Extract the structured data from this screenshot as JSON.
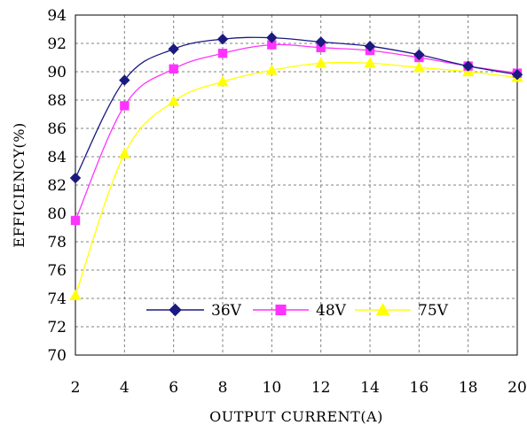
{
  "chart_data": {
    "type": "line",
    "xlabel": "OUTPUT CURRENT(A)",
    "ylabel": "EFFICIENCY(%)",
    "x": [
      2,
      4,
      6,
      8,
      10,
      12,
      14,
      16,
      18,
      20
    ],
    "xlim": [
      2,
      20
    ],
    "ylim": [
      70,
      94
    ],
    "x_ticks": [
      2,
      4,
      6,
      8,
      10,
      12,
      14,
      16,
      18,
      20
    ],
    "y_ticks": [
      70,
      72,
      74,
      76,
      78,
      80,
      82,
      84,
      86,
      88,
      90,
      92,
      94
    ],
    "grid": true,
    "legend_position": "bottom-center",
    "series": [
      {
        "name": "36V",
        "values": [
          82.5,
          89.4,
          91.6,
          92.3,
          92.4,
          92.1,
          91.8,
          91.2,
          90.4,
          89.8
        ],
        "color": "#1a1a80",
        "marker": "diamond"
      },
      {
        "name": "48V",
        "values": [
          79.5,
          87.6,
          90.2,
          91.3,
          91.9,
          91.7,
          91.5,
          91.0,
          90.4,
          89.9
        ],
        "color": "#ff33ff",
        "marker": "square"
      },
      {
        "name": "75V",
        "values": [
          74.2,
          84.2,
          87.9,
          89.3,
          90.1,
          90.6,
          90.6,
          90.3,
          90.0,
          89.6
        ],
        "color": "#ffff00",
        "marker": "triangle"
      }
    ]
  }
}
